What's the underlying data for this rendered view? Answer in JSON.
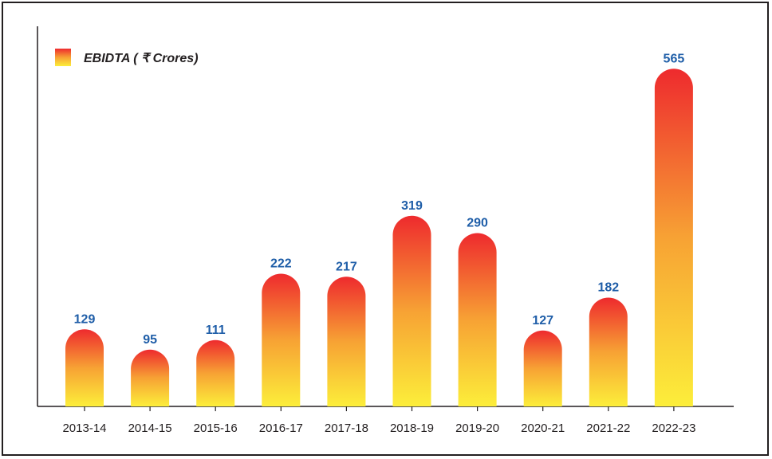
{
  "chart_data": {
    "type": "bar",
    "categories": [
      "2013-14",
      "2014-15",
      "2015-16",
      "2016-17",
      "2017-18",
      "2018-19",
      "2019-20",
      "2020-21",
      "2021-22",
      "2022-23"
    ],
    "series": [
      {
        "name": "EBIDTA ( ₹  Crores)",
        "values": [
          129,
          95,
          111,
          222,
          217,
          319,
          290,
          127,
          182,
          565
        ]
      }
    ],
    "title": "",
    "xlabel": "",
    "ylabel": "",
    "ylim": [
      0,
      620
    ],
    "grid": false,
    "legend_position": "top-left",
    "data_labels": true,
    "colors": {
      "bar_top": "#ee2a2e",
      "bar_middle": "#f7a234",
      "bar_bottom": "#fcee3a",
      "value_label": "#1f5ea8",
      "axis": "#231f20"
    }
  }
}
